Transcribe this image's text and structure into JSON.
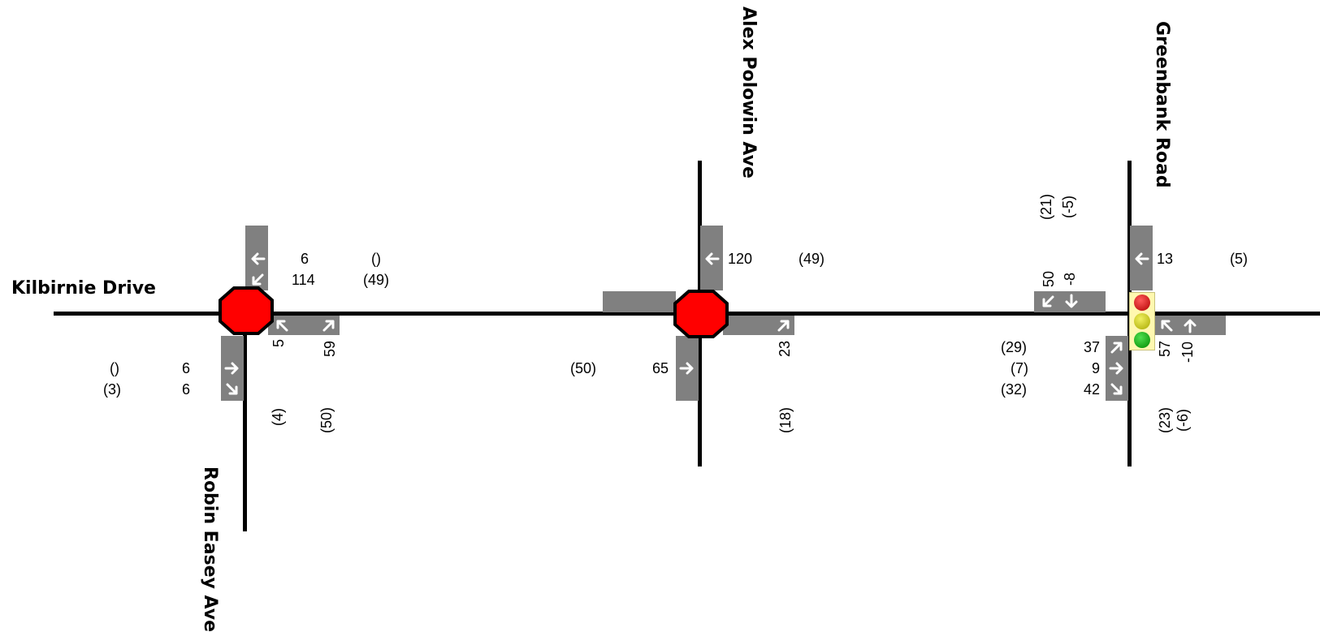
{
  "streets": {
    "kilbirnie": "Kilbirnie Drive",
    "robin_easey": "Robin Easey Ave",
    "alex_polowin": "Alex Polowin Ave",
    "greenbank": "Greenbank Road"
  },
  "colors": {
    "road": "#000000",
    "lane_pad": "#808080",
    "stop_sign": "#ff0000",
    "signal_body": "#fff8b0",
    "signal_red": "#cc0000",
    "signal_yellow": "#c8c800",
    "signal_green": "#00aa00"
  },
  "controls": {
    "robin_easey": "stop-sign",
    "alex_polowin": "stop-sign",
    "greenbank": "traffic-signal"
  },
  "robin_easey": {
    "wb_through": "6",
    "wb_left": "114",
    "wb_through_prev": "()",
    "wb_left_prev": "(49)",
    "nb_left": "5",
    "nb_right": "59",
    "nb_left_prev": "(4)",
    "nb_right_prev": "(50)",
    "eb_through": "6",
    "eb_right": "6",
    "eb_through_prev": "()",
    "eb_right_prev": "(3)"
  },
  "alex_polowin": {
    "wb_through": "120",
    "wb_through_prev": "(49)",
    "nb_right": "23",
    "nb_right_prev": "(18)",
    "eb_through": "65",
    "eb_through_prev": "(50)"
  },
  "greenbank": {
    "sb_right": "50",
    "sb_through": "-8",
    "sb_right_prev": "(21)",
    "sb_through_prev": "(-5)",
    "wb_through": "13",
    "wb_through_prev": "(5)",
    "eb_left": "37",
    "eb_through": "9",
    "eb_right": "42",
    "eb_left_prev": "(29)",
    "eb_through_prev": "(7)",
    "eb_right_prev": "(32)",
    "nb_left": "57",
    "nb_through": "-10",
    "nb_left_prev": "(23)",
    "nb_through_prev": "(-6)"
  }
}
